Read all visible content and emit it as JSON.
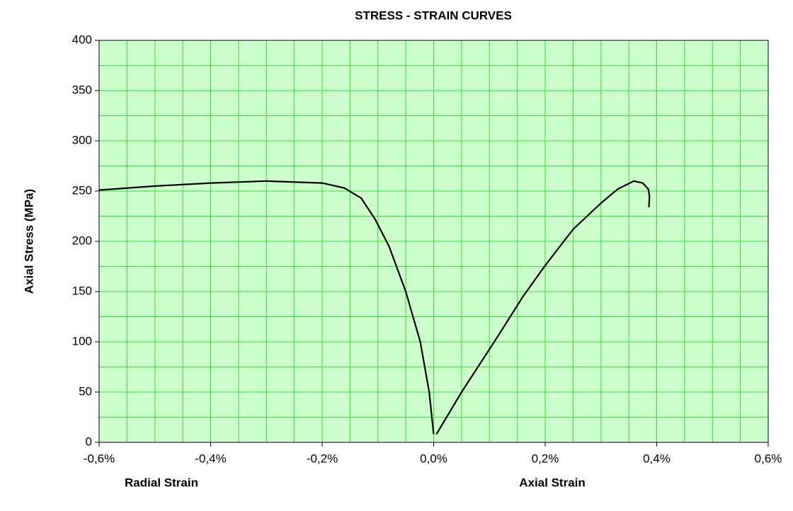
{
  "chart_data": {
    "type": "line",
    "title": "STRESS - STRAIN CURVES",
    "y_label": "Axial Stress (MPa)",
    "xlim": [
      -0.6,
      0.6
    ],
    "ylim": [
      0,
      400
    ],
    "xticks": [
      {
        "value": -0.6,
        "label": "-0,6%"
      },
      {
        "value": -0.4,
        "label": "-0,4%"
      },
      {
        "value": -0.2,
        "label": "-0,2%"
      },
      {
        "value": 0,
        "label": "0,0%"
      },
      {
        "value": 0.2,
        "label": "0,2%"
      },
      {
        "value": 0.4,
        "label": "0,4%"
      },
      {
        "value": 0.6,
        "label": "0,6%"
      }
    ],
    "yticks": [
      0,
      50,
      100,
      150,
      200,
      250,
      300,
      350,
      400
    ],
    "xgrid": [
      -0.55,
      -0.5,
      -0.45,
      -0.35,
      -0.3,
      -0.25,
      -0.15,
      -0.1,
      -0.05,
      0.05,
      0.1,
      0.15,
      0.25,
      0.3,
      0.35,
      0.45,
      0.5,
      0.55
    ],
    "ygrid": [
      25,
      75,
      125,
      175,
      225,
      275,
      325,
      375
    ],
    "grid": true,
    "grid_color": "#33dd33",
    "background": "#ccffcc",
    "series": [
      {
        "name": "Radial Strain",
        "color": "#000000",
        "x": [
          -0.6,
          -0.5,
          -0.4,
          -0.3,
          -0.2,
          -0.16,
          -0.13,
          -0.105,
          -0.08,
          -0.05,
          -0.024,
          -0.008,
          0.0
        ],
        "values": [
          251,
          255,
          258,
          260,
          258,
          253,
          243,
          222,
          195,
          150,
          100,
          50,
          8
        ]
      },
      {
        "name": "Axial Strain",
        "color": "#000000",
        "x": [
          0.005,
          0.05,
          0.111,
          0.16,
          0.2,
          0.25,
          0.3,
          0.33,
          0.359,
          0.375,
          0.385,
          0.387,
          0.386
        ],
        "values": [
          8,
          50,
          102,
          145,
          176,
          212,
          238,
          252,
          260,
          258,
          252,
          245,
          234
        ]
      }
    ]
  }
}
